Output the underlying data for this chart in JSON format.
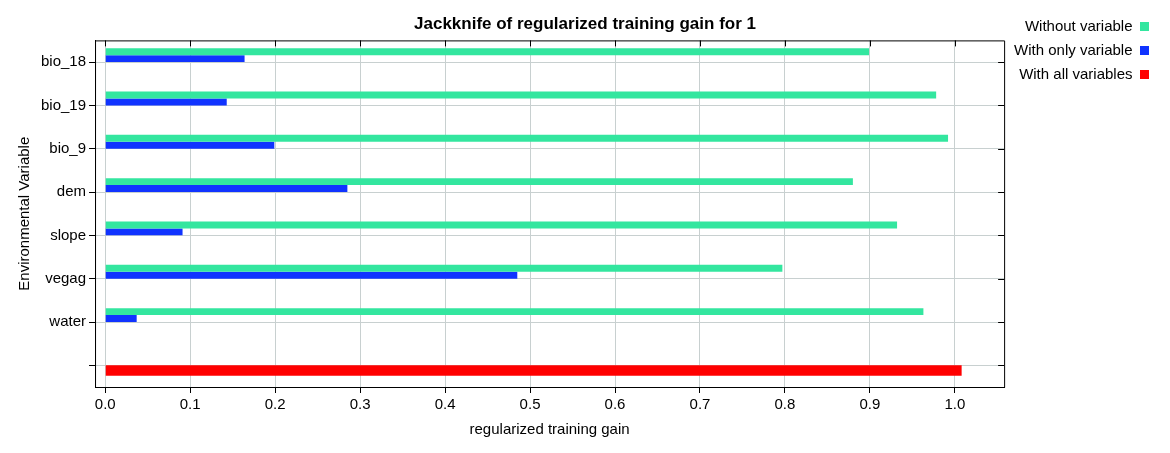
{
  "chart_data": {
    "type": "bar",
    "orientation": "horizontal",
    "title": "Jackknife of regularized training gain for 1",
    "xlabel": "regularized training gain",
    "ylabel": "Environmental Variable",
    "categories": [
      "bio_18",
      "bio_19",
      "bio_9",
      "dem",
      "slope",
      "vegag",
      "water",
      null
    ],
    "series": [
      {
        "name": "Without variable",
        "color": "#33e69f",
        "values": [
          0.899,
          0.978,
          0.992,
          0.88,
          0.932,
          0.797,
          0.963,
          null
        ]
      },
      {
        "name": "With only variable",
        "color": "#1033ff",
        "values": [
          0.164,
          0.143,
          0.199,
          0.285,
          0.091,
          0.485,
          0.037,
          null
        ]
      },
      {
        "name": "With all variables",
        "color": "#ff0000",
        "values": [
          null,
          null,
          null,
          null,
          null,
          null,
          null,
          1.008
        ]
      }
    ],
    "xlim": [
      -0.012,
      1.058
    ],
    "xticks": [
      {
        "value": 0,
        "label": "0.0"
      },
      0.1,
      0.2,
      0.3,
      0.4,
      0.5,
      0.6,
      0.7,
      0.8,
      0.9,
      {
        "value": 1,
        "label": "1.0"
      }
    ],
    "grid": true,
    "legend": "top right"
  }
}
